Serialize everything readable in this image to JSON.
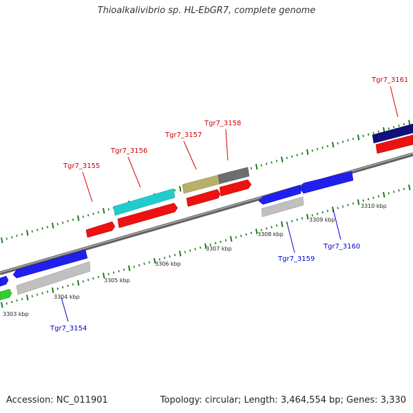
{
  "title": "Thioalkalivibrio sp. HL-EbGR7, complete genome",
  "footer": {
    "accession_label": "Accession:",
    "accession": "NC_011901",
    "topology_label": "Topology:",
    "topology": "circular",
    "length_label": "Length:",
    "length": "3,464,554 bp",
    "genes_label": "Genes:",
    "genes": "3,330"
  },
  "colors": {
    "backbone": "#808080",
    "tick": "#1a7a1a",
    "forward_label": "#cc0000",
    "reverse_label": "#0000cc"
  },
  "kbp_labels": [
    "3303 kbp",
    "3304 kbp",
    "3305 kbp",
    "3306 kbp",
    "3307 kbp",
    "3308 kbp",
    "3309 kbp",
    "3310 kbp"
  ],
  "gene_labels": [
    {
      "text": "Tgr7_3154",
      "strand": "reverse"
    },
    {
      "text": "Tgr7_3155",
      "strand": "forward"
    },
    {
      "text": "Tgr7_3156",
      "strand": "forward"
    },
    {
      "text": "Tgr7_3157",
      "strand": "forward"
    },
    {
      "text": "Tgr7_3158",
      "strand": "forward"
    },
    {
      "text": "Tgr7_3159",
      "strand": "reverse"
    },
    {
      "text": "Tgr7_3160",
      "strand": "reverse"
    },
    {
      "text": "Tgr7_3161",
      "strand": "forward"
    }
  ],
  "features": [
    {
      "name": "feature-blue-left-edge",
      "color": "#2020ee"
    },
    {
      "name": "feature-green-left-edge",
      "color": "#33cc33"
    },
    {
      "name": "feature-blue-3304",
      "color": "#2020ee"
    },
    {
      "name": "feature-gray-3304",
      "color": "#c0c0c0"
    },
    {
      "name": "feature-red-3155",
      "color": "#ee1111"
    },
    {
      "name": "feature-cyan-3156",
      "color": "#22cccc"
    },
    {
      "name": "feature-red-3156",
      "color": "#ee1111"
    },
    {
      "name": "feature-olive-3157",
      "color": "#b8b06a"
    },
    {
      "name": "feature-darkgray-3158",
      "color": "#6e6e6e"
    },
    {
      "name": "feature-red-3157",
      "color": "#ee1111"
    },
    {
      "name": "feature-red-3158",
      "color": "#ee1111"
    },
    {
      "name": "feature-blue-3159",
      "color": "#2020ee"
    },
    {
      "name": "feature-gray-3159",
      "color": "#c0c0c0"
    },
    {
      "name": "feature-blue-3160",
      "color": "#2020ee"
    },
    {
      "name": "feature-navy-3161",
      "color": "#10107a"
    },
    {
      "name": "feature-red-3161",
      "color": "#ee1111"
    }
  ]
}
